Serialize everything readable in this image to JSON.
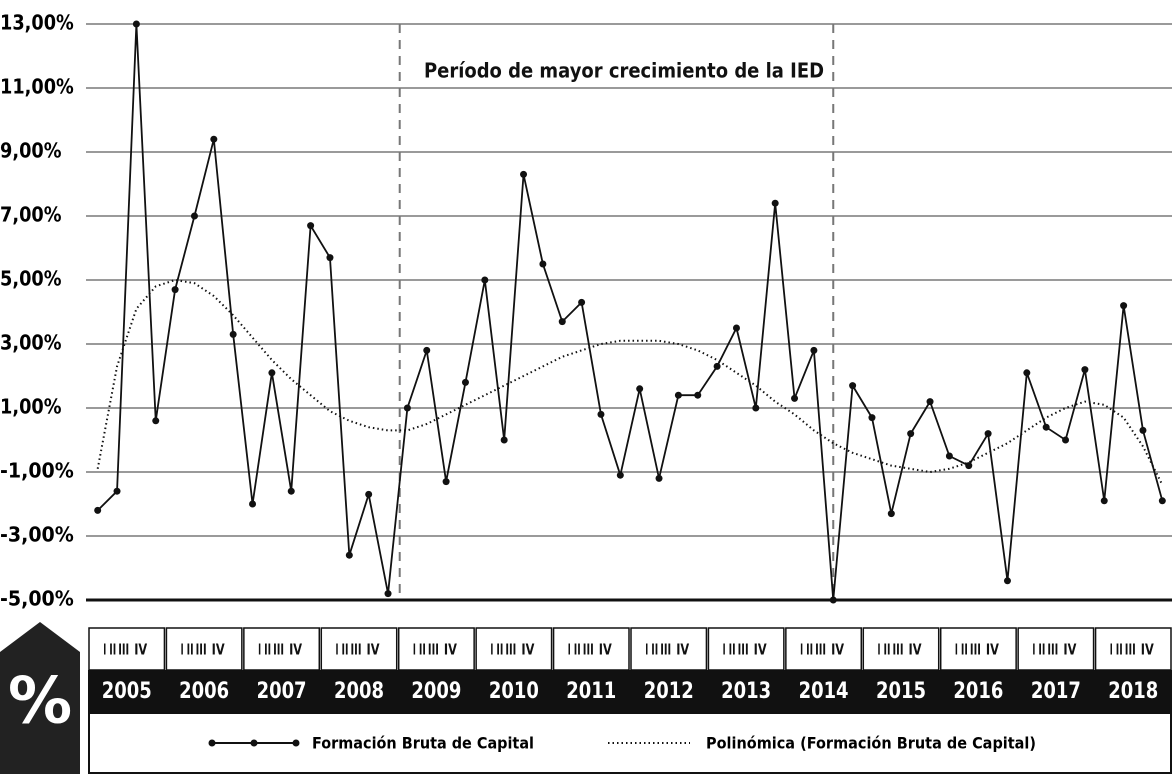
{
  "chart_data": {
    "type": "line",
    "annotation": "Período de mayor crecimiento de la IED",
    "unit_symbol": "%",
    "years": [
      "2005",
      "2006",
      "2007",
      "2008",
      "2009",
      "2010",
      "2011",
      "2012",
      "2013",
      "2014",
      "2015",
      "2016",
      "2017",
      "2018"
    ],
    "quarters": [
      "I",
      "II",
      "III",
      "IV"
    ],
    "series": [
      {
        "name": "Formación Bruta de Capital",
        "color": "#111111",
        "line_style": "solid",
        "markers": true,
        "values": [
          -2.2,
          -1.6,
          13.0,
          0.6,
          4.7,
          7.0,
          9.4,
          3.3,
          -2.0,
          2.1,
          -1.6,
          6.7,
          5.7,
          -3.6,
          -1.7,
          -4.8,
          1.0,
          2.8,
          -1.3,
          1.8,
          5.0,
          0.0,
          8.3,
          5.5,
          3.7,
          4.3,
          0.8,
          -1.1,
          1.6,
          -1.2,
          1.4,
          1.4,
          2.3,
          3.5,
          1.0,
          7.4,
          1.3,
          2.8,
          -5.0,
          1.7,
          0.7,
          -2.3,
          0.2,
          1.2,
          -0.5,
          -0.8,
          0.2,
          -4.4,
          2.1,
          0.4,
          0.0,
          2.2,
          -1.9,
          4.2,
          0.3,
          -1.9
        ]
      },
      {
        "name": "Polinómica (Formación Bruta de Capital)",
        "color": "#111111",
        "line_style": "dotted",
        "markers": false,
        "values": [
          -0.9,
          2.3,
          4.1,
          4.8,
          5.0,
          4.9,
          4.5,
          3.9,
          3.2,
          2.5,
          1.9,
          1.4,
          0.9,
          0.6,
          0.4,
          0.3,
          0.3,
          0.5,
          0.8,
          1.1,
          1.4,
          1.7,
          2.0,
          2.3,
          2.6,
          2.8,
          3.0,
          3.1,
          3.1,
          3.1,
          3.0,
          2.8,
          2.5,
          2.1,
          1.7,
          1.2,
          0.8,
          0.3,
          -0.1,
          -0.4,
          -0.6,
          -0.8,
          -0.9,
          -1.0,
          -0.9,
          -0.7,
          -0.4,
          -0.1,
          0.3,
          0.7,
          1.0,
          1.2,
          1.1,
          0.7,
          -0.2,
          -1.4
        ]
      }
    ],
    "ylim": [
      -5,
      13
    ],
    "yticks": [
      {
        "value": 13,
        "label": "13,00%"
      },
      {
        "value": 11,
        "label": "11,00%"
      },
      {
        "value": 9,
        "label": "9,00%"
      },
      {
        "value": 7,
        "label": "7,00%"
      },
      {
        "value": 5,
        "label": "5,00%"
      },
      {
        "value": 3,
        "label": "3,00%"
      },
      {
        "value": 1,
        "label": "1,00%"
      },
      {
        "value": -1,
        "label": "-1,00%"
      },
      {
        "value": -3,
        "label": "-3,00%"
      },
      {
        "value": -5,
        "label": "-5,00%"
      }
    ],
    "grid": true
  }
}
